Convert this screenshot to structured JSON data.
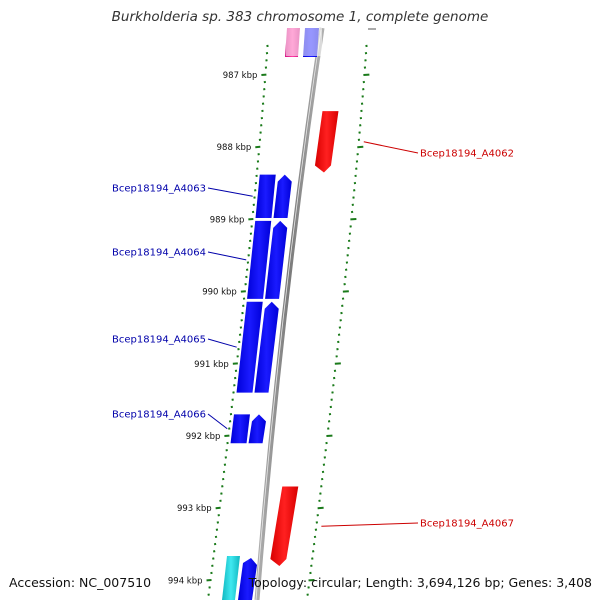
{
  "title": "Burkholderia sp. 383 chromosome 1, complete genome",
  "footer": {
    "accession": "Accession: NC_007510",
    "summary": "Topology: circular; Length: 3,694,126 bp; Genes: 3,408"
  },
  "scale": {
    "unit": "kbp",
    "ticks": [
      {
        "label": "987 kbp",
        "pos": 987
      },
      {
        "label": "988 kbp",
        "pos": 988
      },
      {
        "label": "989 kbp",
        "pos": 989
      },
      {
        "label": "990 kbp",
        "pos": 990
      },
      {
        "label": "991 kbp",
        "pos": 991
      },
      {
        "label": "992 kbp",
        "pos": 992
      },
      {
        "label": "993 kbp",
        "pos": 993
      },
      {
        "label": "994 kbp",
        "pos": 994
      }
    ]
  },
  "colors": {
    "forward_gene": "#0000ee",
    "reverse_gene": "#ee0000",
    "magenta_gene": "#e0108a",
    "cyan_gene": "#10c8d0",
    "backbone": "#8a8a8a",
    "tick": "#1a7a1a",
    "label_forward": "#0000aa",
    "label_reverse": "#cc0000"
  },
  "genes": [
    {
      "name": "Bcep18194_A4062",
      "strand": "reverse",
      "start": 987.5,
      "end": 988.35
    },
    {
      "name": "Bcep18194_A4063",
      "strand": "forward",
      "start": 988.38,
      "end": 988.98
    },
    {
      "name": "Bcep18194_A4064",
      "strand": "forward",
      "start": 989.02,
      "end": 990.1
    },
    {
      "name": "Bcep18194_A4065",
      "strand": "forward",
      "start": 990.14,
      "end": 991.4
    },
    {
      "name": "Bcep18194_A4066",
      "strand": "forward",
      "start": 991.7,
      "end": 992.1
    },
    {
      "name": "Bcep18194_A4067",
      "strand": "reverse",
      "start": 992.7,
      "end": 993.8
    }
  ]
}
